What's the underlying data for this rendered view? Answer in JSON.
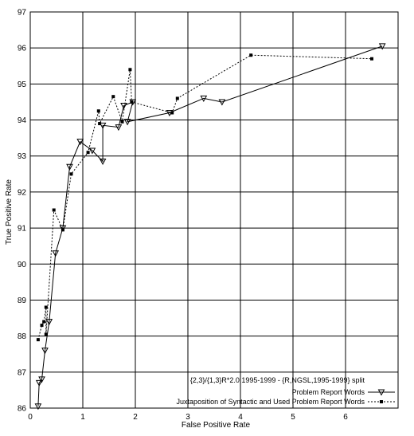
{
  "chart_data": {
    "type": "line",
    "xlabel": "False Positive Rate",
    "ylabel": "True Positive Rate",
    "xlim": [
      0,
      7
    ],
    "ylim": [
      86,
      97
    ],
    "xticks": [
      0,
      1,
      2,
      3,
      4,
      5,
      6
    ],
    "yticks": [
      86,
      87,
      88,
      89,
      90,
      91,
      92,
      93,
      94,
      95,
      96,
      97
    ],
    "grid": true,
    "legend_title": "{2,3}/{1,3}R*2.0,1995-1999 - {R,NGSL,1995-1999} split",
    "legend_position": "bottom-right",
    "series": [
      {
        "name": "Problem Report Words",
        "marker": "triangle-down",
        "dash": "solid",
        "points": [
          [
            0.15,
            86.05
          ],
          [
            0.17,
            86.7
          ],
          [
            0.22,
            86.8
          ],
          [
            0.28,
            87.6
          ],
          [
            0.36,
            88.4
          ],
          [
            0.48,
            90.3
          ],
          [
            0.62,
            91.0
          ],
          [
            0.75,
            92.7
          ],
          [
            0.95,
            93.4
          ],
          [
            1.18,
            93.15
          ],
          [
            1.38,
            92.85
          ],
          [
            1.38,
            93.85
          ],
          [
            1.68,
            93.8
          ],
          [
            1.78,
            94.4
          ],
          [
            1.95,
            94.5
          ],
          [
            1.85,
            93.95
          ],
          [
            2.65,
            94.2
          ],
          [
            3.3,
            94.6
          ],
          [
            3.65,
            94.5
          ],
          [
            6.7,
            96.05
          ]
        ]
      },
      {
        "name": "Juxtaposition of Syntactic and Used Problem Report Words",
        "marker": "square",
        "dash": "dashed",
        "points": [
          [
            0.15,
            87.9
          ],
          [
            0.22,
            88.3
          ],
          [
            0.26,
            88.4
          ],
          [
            0.3,
            88.8
          ],
          [
            0.3,
            88.05
          ],
          [
            0.45,
            91.5
          ],
          [
            0.62,
            90.95
          ],
          [
            0.78,
            92.5
          ],
          [
            1.1,
            93.1
          ],
          [
            1.3,
            94.25
          ],
          [
            1.32,
            93.9
          ],
          [
            1.58,
            94.65
          ],
          [
            1.75,
            93.95
          ],
          [
            1.9,
            95.4
          ],
          [
            1.93,
            94.5
          ],
          [
            2.7,
            94.2
          ],
          [
            2.8,
            94.6
          ],
          [
            4.2,
            95.8
          ],
          [
            6.5,
            95.7
          ]
        ]
      }
    ]
  }
}
